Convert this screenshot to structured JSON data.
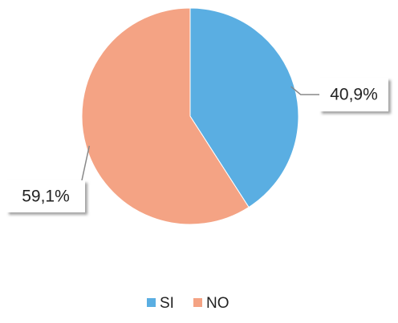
{
  "chart_data": {
    "type": "pie",
    "categories": [
      "SI",
      "NO"
    ],
    "values": [
      40.9,
      59.1
    ],
    "value_labels": [
      "40,9%",
      "59,1%"
    ],
    "colors": [
      "#5aaee2",
      "#f4a384"
    ],
    "legend": "bottom"
  }
}
